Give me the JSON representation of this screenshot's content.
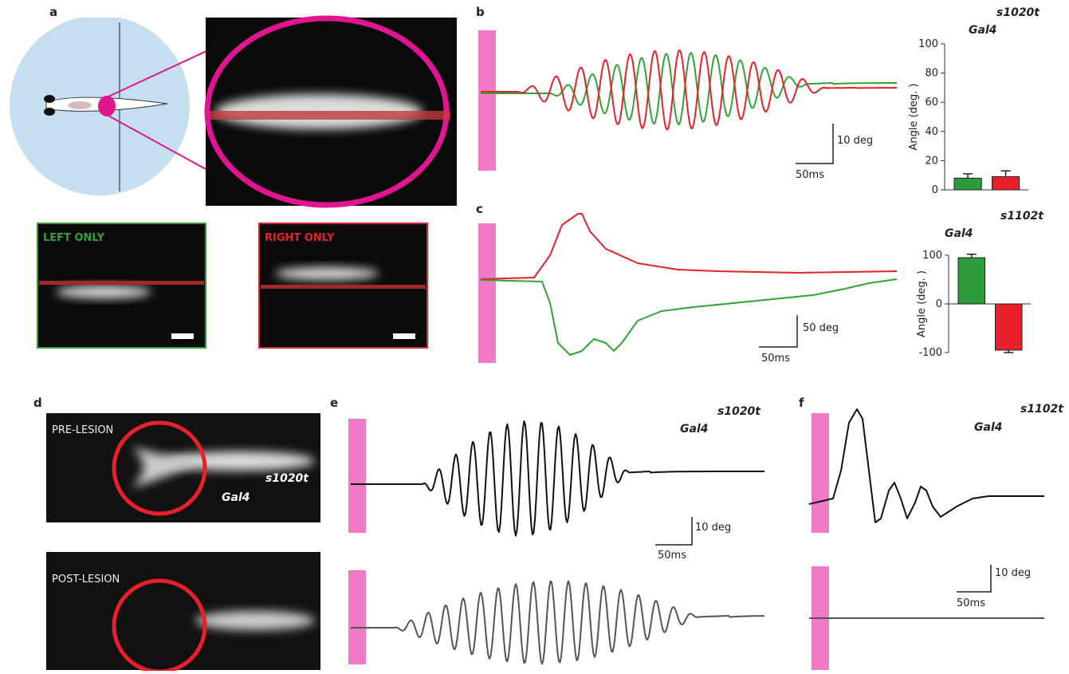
{
  "panels": {
    "a": {
      "label": "a",
      "left": "LEFT ONLY",
      "right": "RIGHT ONLY"
    },
    "b": {
      "label": "b",
      "line": "s1020t",
      "driver": "Gal4",
      "scale_y": "10 deg",
      "scale_x": "50ms"
    },
    "c": {
      "label": "c",
      "line": "s1102t",
      "driver": "Gal4",
      "scale_y": "50 deg",
      "scale_x": "50ms"
    },
    "d": {
      "label": "d",
      "pre": "PRE-LESION",
      "post": "POST-LESION",
      "line": "s1020t",
      "driver": "Gal4"
    },
    "e": {
      "label": "e",
      "line": "s1020t",
      "driver": "Gal4",
      "scale_y": "10 deg",
      "scale_x": "50ms"
    },
    "f": {
      "label": "f",
      "line": "s1102t",
      "driver": "Gal4",
      "scale_y": "10 deg",
      "scale_x": "50ms"
    }
  },
  "chart_data": [
    {
      "type": "bar",
      "ylabel": "Angle (deg. )",
      "categories": [
        null,
        null
      ],
      "values": [
        8,
        9
      ],
      "errors": [
        3,
        4
      ],
      "colors": [
        "#2e9a3a",
        "#e8202a"
      ],
      "ylim": [
        0,
        100
      ],
      "yticks": [
        0,
        20,
        40,
        60,
        80,
        100
      ]
    },
    {
      "type": "bar",
      "ylabel": "Angle (deg. )",
      "categories": [
        null,
        null
      ],
      "values": [
        95,
        -95
      ],
      "errors": [
        7,
        5
      ],
      "colors": [
        "#2e9a3a",
        "#e8202a"
      ],
      "ylim": [
        -100,
        100
      ],
      "yticks": [
        -100,
        0,
        100
      ]
    }
  ]
}
